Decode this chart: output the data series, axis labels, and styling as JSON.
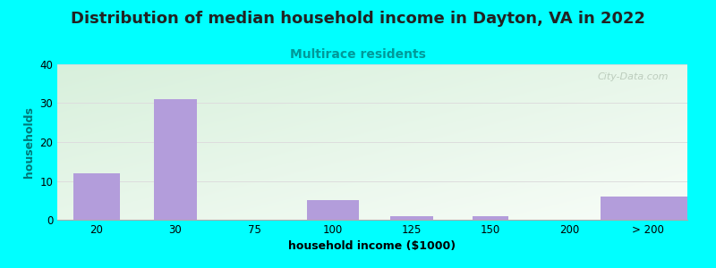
{
  "title": "Distribution of median household income in Dayton, VA in 2022",
  "subtitle": "Multirace residents",
  "xlabel": "household income ($1000)",
  "ylabel": "households",
  "background_color": "#00FFFF",
  "plot_bg_color_topleft": "#d8f0dc",
  "plot_bg_color_bottomright": "#f8fdf8",
  "bar_color": "#b39ddb",
  "bar_edge_color": "#9575cd",
  "categories": [
    "20",
    "30",
    "75",
    "100",
    "125",
    "150",
    "200",
    "> 200"
  ],
  "values": [
    12,
    31,
    0,
    5,
    1,
    1,
    0,
    6
  ],
  "bar_widths": [
    0.6,
    0.55,
    0.4,
    0.65,
    0.55,
    0.45,
    0.45,
    1.2
  ],
  "ylim": [
    0,
    40
  ],
  "yticks": [
    0,
    10,
    20,
    30,
    40
  ],
  "title_fontsize": 13,
  "subtitle_fontsize": 10,
  "subtitle_color": "#009999",
  "title_color": "#222222",
  "axis_label_fontsize": 9,
  "tick_fontsize": 8.5,
  "watermark_text": "City-Data.com",
  "watermark_color": "#aabbaa",
  "grid_color": "#dddddd",
  "ylabel_color": "#007777"
}
